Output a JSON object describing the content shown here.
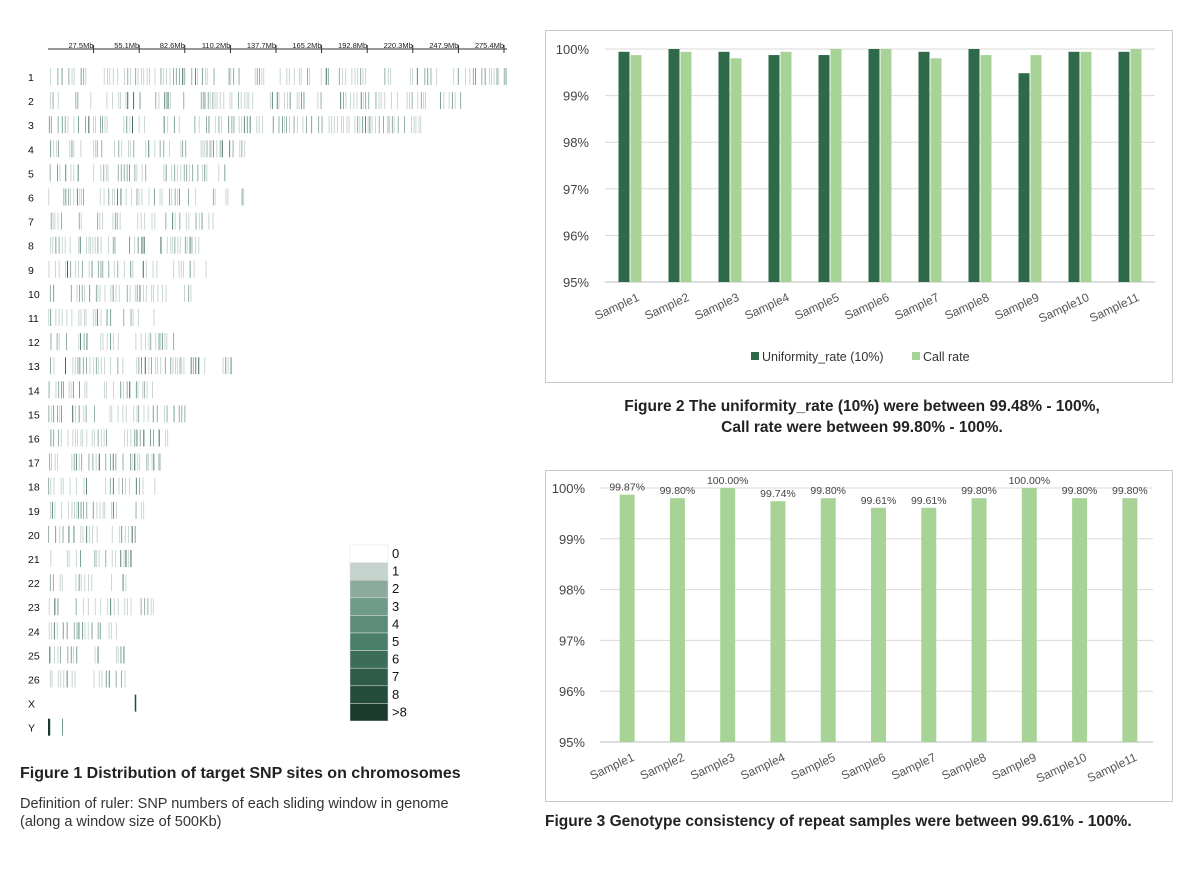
{
  "figure1": {
    "caption": "Figure 1  Distribution of target SNP sites on chromosomes",
    "note_line1": "Definition of ruler: SNP numbers of each sliding window in genome",
    "note_line2": "(along a window size of 500Kb)"
  },
  "figure2": {
    "caption_line1": "Figure 2 The uniformity_rate (10%) were between 99.48% - 100%,",
    "caption_line2": "Call rate were between 99.80% - 100%."
  },
  "figure3": {
    "caption": "Figure 3 Genotype consistency of repeat samples were between 99.61% - 100%."
  },
  "chart_data": [
    {
      "id": "fig1",
      "type": "heatmap",
      "title": "Distribution of target SNP sites on chromosomes",
      "ruler_ticks": [
        "27.5Mb",
        "55.1Mb",
        "82.6Mb",
        "110.2Mb",
        "137.7Mb",
        "165.2Mb",
        "192.8Mb",
        "220.3Mb",
        "247.9Mb",
        "275.4Mb"
      ],
      "ruler_mb": [
        27.5,
        55.1,
        82.6,
        110.2,
        137.7,
        165.2,
        192.8,
        220.3,
        247.9,
        275.4
      ],
      "xlim_mb": [
        0,
        280
      ],
      "chromosomes": [
        "1",
        "2",
        "3",
        "4",
        "5",
        "6",
        "7",
        "8",
        "9",
        "10",
        "11",
        "12",
        "13",
        "14",
        "15",
        "16",
        "17",
        "18",
        "19",
        "20",
        "21",
        "22",
        "23",
        "24",
        "25",
        "26",
        "X",
        "Y"
      ],
      "chromosome_length_mb": [
        278,
        250,
        225,
        122,
        110,
        118,
        100,
        92,
        96,
        87,
        64,
        78,
        112,
        63,
        84,
        72,
        72,
        67,
        61,
        53,
        51,
        49,
        64,
        42,
        48,
        48,
        53,
        10
      ],
      "legend_labels": [
        "0",
        "1",
        "2",
        "3",
        "4",
        "5",
        "6",
        "7",
        "8",
        ">8"
      ],
      "legend_colors": [
        "#ffffff",
        "#c4d3cd",
        "#8aaa9c",
        "#6e9b8a",
        "#5b8d79",
        "#4a7f69",
        "#3b6d58",
        "#2f5c48",
        "#244c3a",
        "#1a3a2c"
      ]
    },
    {
      "id": "fig2",
      "type": "bar",
      "categories": [
        "Sample1",
        "Sample2",
        "Sample3",
        "Sample4",
        "Sample5",
        "Sample6",
        "Sample7",
        "Sample8",
        "Sample9",
        "Sample10",
        "Sample11"
      ],
      "series": [
        {
          "name": "Uniformity_rate (10%)",
          "color": "#2e6a4a",
          "values": [
            99.94,
            100.0,
            99.94,
            99.87,
            99.87,
            100.0,
            99.94,
            100.0,
            99.48,
            99.94,
            99.94
          ]
        },
        {
          "name": "Call rate",
          "color": "#a8d396",
          "values": [
            99.87,
            99.94,
            99.8,
            99.94,
            100.0,
            100.0,
            99.8,
            99.87,
            99.87,
            99.94,
            100.0
          ]
        }
      ],
      "ylim": [
        95,
        100
      ],
      "yticks": [
        "95%",
        "96%",
        "97%",
        "98%",
        "99%",
        "100%"
      ]
    },
    {
      "id": "fig3",
      "type": "bar",
      "categories": [
        "Sample1",
        "Sample2",
        "Sample3",
        "Sample4",
        "Sample5",
        "Sample6",
        "Sample7",
        "Sample8",
        "Sample9",
        "Sample10",
        "Sample11"
      ],
      "values": [
        99.87,
        99.8,
        100.0,
        99.74,
        99.8,
        99.61,
        99.61,
        99.8,
        100.0,
        99.8,
        99.8
      ],
      "data_labels": [
        "99.87%",
        "99.80%",
        "100.00%",
        "99.74%",
        "99.80%",
        "99.61%",
        "99.61%",
        "99.80%",
        "100.00%",
        "99.80%",
        "99.80%"
      ],
      "color": "#a8d396",
      "ylim": [
        95,
        100
      ],
      "yticks": [
        "95%",
        "96%",
        "97%",
        "98%",
        "99%",
        "100%"
      ]
    }
  ]
}
